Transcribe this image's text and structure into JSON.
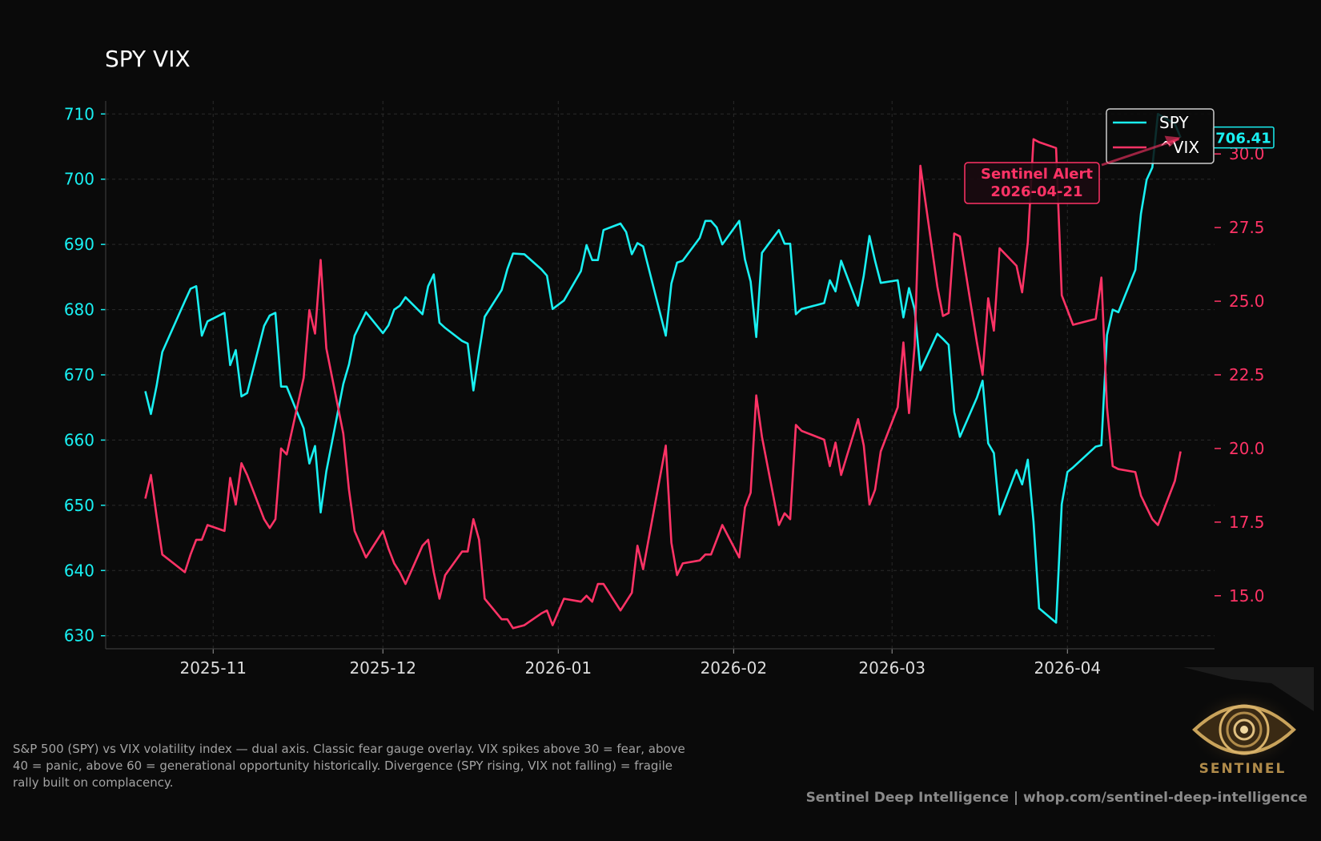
{
  "title": "SPY VIX",
  "caption": "S&P 500 (SPY) vs VIX volatility index — dual axis. Classic fear gauge overlay. VIX spikes above 30 = fear, above 40 = panic, above 60 = generational opportunity historically. Divergence (SPY rising, VIX not falling) = fragile rally built on complacency.",
  "footer": "Sentinel Deep Intelligence  |  whop.com/sentinel-deep-intelligence",
  "brand": {
    "logo_word": "SENTINEL",
    "logo_icon": "eye-icon"
  },
  "colors": {
    "background": "#0a0a0a",
    "spy": "#19f0f2",
    "vix": "#ff3366",
    "alert": "#ff3366"
  },
  "chart_data": {
    "type": "line",
    "title": "SPY VIX",
    "x_ticks": [
      "2025-11",
      "2025-12",
      "2026-01",
      "2026-02",
      "2026-03",
      "2026-04"
    ],
    "left_axis": {
      "series": "SPY",
      "ylim": [
        628,
        712
      ],
      "ticks": [
        "630",
        "640",
        "650",
        "660",
        "670",
        "680",
        "690",
        "700",
        "710"
      ]
    },
    "right_axis": {
      "series": "^VIX",
      "ylim": [
        13.2,
        31.8
      ],
      "ticks": [
        "15.0",
        "17.5",
        "20.0",
        "22.5",
        "25.0",
        "27.5",
        "30.0"
      ]
    },
    "grid": true,
    "legend": {
      "position": "top-right",
      "entries": [
        "SPY",
        "^VIX"
      ]
    },
    "last_value_label": "706.41",
    "annotation": {
      "line1": "Sentinel Alert",
      "line2": "2026-04-21",
      "date": "2026-04-21"
    },
    "series": [
      {
        "name": "SPY",
        "axis": "left",
        "points": [
          [
            "2025-10-20",
            667.5
          ],
          [
            "2025-10-21",
            664.0
          ],
          [
            "2025-10-22",
            668.3
          ],
          [
            "2025-10-23",
            673.5
          ],
          [
            "2025-10-27",
            681.3
          ],
          [
            "2025-10-28",
            683.2
          ],
          [
            "2025-10-29",
            683.6
          ],
          [
            "2025-10-30",
            676.0
          ],
          [
            "2025-10-31",
            678.2
          ],
          [
            "2025-11-03",
            679.5
          ],
          [
            "2025-11-04",
            671.5
          ],
          [
            "2025-11-05",
            673.8
          ],
          [
            "2025-11-06",
            666.7
          ],
          [
            "2025-11-07",
            667.2
          ],
          [
            "2025-11-10",
            677.5
          ],
          [
            "2025-11-11",
            679.1
          ],
          [
            "2025-11-12",
            679.5
          ],
          [
            "2025-11-13",
            668.2
          ],
          [
            "2025-11-14",
            668.2
          ],
          [
            "2025-11-17",
            661.8
          ],
          [
            "2025-11-18",
            656.4
          ],
          [
            "2025-11-19",
            659.1
          ],
          [
            "2025-11-20",
            648.9
          ],
          [
            "2025-11-21",
            655.2
          ],
          [
            "2025-11-24",
            668.6
          ],
          [
            "2025-11-25",
            671.6
          ],
          [
            "2025-11-26",
            676.0
          ],
          [
            "2025-11-28",
            679.6
          ],
          [
            "2025-12-01",
            676.4
          ],
          [
            "2025-12-02",
            677.6
          ],
          [
            "2025-12-03",
            680.0
          ],
          [
            "2025-12-04",
            680.6
          ],
          [
            "2025-12-05",
            681.9
          ],
          [
            "2025-12-08",
            679.3
          ],
          [
            "2025-12-09",
            683.6
          ],
          [
            "2025-12-10",
            685.4
          ],
          [
            "2025-12-11",
            678.0
          ],
          [
            "2025-12-12",
            677.2
          ],
          [
            "2025-12-15",
            675.2
          ],
          [
            "2025-12-16",
            674.8
          ],
          [
            "2025-12-17",
            667.6
          ],
          [
            "2025-12-18",
            673.5
          ],
          [
            "2025-12-19",
            678.9
          ],
          [
            "2025-12-22",
            683.0
          ],
          [
            "2025-12-23",
            686.2
          ],
          [
            "2025-12-24",
            688.6
          ],
          [
            "2025-12-26",
            688.5
          ],
          [
            "2025-12-29",
            686.2
          ],
          [
            "2025-12-30",
            685.2
          ],
          [
            "2025-12-31",
            680.1
          ],
          [
            "2026-01-02",
            681.4
          ],
          [
            "2026-01-05",
            685.9
          ],
          [
            "2026-01-06",
            689.9
          ],
          [
            "2026-01-07",
            687.6
          ],
          [
            "2026-01-08",
            687.6
          ],
          [
            "2026-01-09",
            692.2
          ],
          [
            "2026-01-12",
            693.2
          ],
          [
            "2026-01-13",
            691.9
          ],
          [
            "2026-01-14",
            688.5
          ],
          [
            "2026-01-15",
            690.2
          ],
          [
            "2026-01-16",
            689.7
          ],
          [
            "2026-01-20",
            676.0
          ],
          [
            "2026-01-21",
            684.0
          ],
          [
            "2026-01-22",
            687.2
          ],
          [
            "2026-01-23",
            687.5
          ],
          [
            "2026-01-26",
            691.0
          ],
          [
            "2026-01-27",
            693.6
          ],
          [
            "2026-01-28",
            693.6
          ],
          [
            "2026-01-29",
            692.6
          ],
          [
            "2026-01-30",
            690.0
          ],
          [
            "2026-02-02",
            693.6
          ],
          [
            "2026-02-03",
            687.7
          ],
          [
            "2026-02-04",
            684.3
          ],
          [
            "2026-02-05",
            675.8
          ],
          [
            "2026-02-06",
            688.7
          ],
          [
            "2026-02-09",
            692.2
          ],
          [
            "2026-02-10",
            690.1
          ],
          [
            "2026-02-11",
            690.1
          ],
          [
            "2026-02-12",
            679.3
          ],
          [
            "2026-02-13",
            680.1
          ],
          [
            "2026-02-17",
            681.0
          ],
          [
            "2026-02-18",
            684.5
          ],
          [
            "2026-02-19",
            682.8
          ],
          [
            "2026-02-20",
            687.5
          ],
          [
            "2026-02-23",
            680.6
          ],
          [
            "2026-02-24",
            685.2
          ],
          [
            "2026-02-25",
            691.3
          ],
          [
            "2026-02-26",
            687.5
          ],
          [
            "2026-02-27",
            684.1
          ],
          [
            "2026-03-02",
            684.5
          ],
          [
            "2026-03-03",
            678.8
          ],
          [
            "2026-03-04",
            683.3
          ],
          [
            "2026-03-05",
            680.0
          ],
          [
            "2026-03-06",
            670.7
          ],
          [
            "2026-03-09",
            676.3
          ],
          [
            "2026-03-10",
            675.5
          ],
          [
            "2026-03-11",
            674.6
          ],
          [
            "2026-03-12",
            664.3
          ],
          [
            "2026-03-13",
            660.5
          ],
          [
            "2026-03-16",
            666.5
          ],
          [
            "2026-03-17",
            669.1
          ],
          [
            "2026-03-18",
            659.5
          ],
          [
            "2026-03-19",
            658.0
          ],
          [
            "2026-03-20",
            648.6
          ],
          [
            "2026-03-23",
            655.4
          ],
          [
            "2026-03-24",
            653.2
          ],
          [
            "2026-03-25",
            657.0
          ],
          [
            "2026-03-26",
            647.5
          ],
          [
            "2026-03-27",
            634.2
          ],
          [
            "2026-03-30",
            632.0
          ],
          [
            "2026-03-31",
            650.2
          ],
          [
            "2026-04-01",
            655.1
          ],
          [
            "2026-04-02",
            655.8
          ],
          [
            "2026-04-06",
            659.0
          ],
          [
            "2026-04-07",
            659.2
          ],
          [
            "2026-04-08",
            676.1
          ],
          [
            "2026-04-09",
            680.0
          ],
          [
            "2026-04-10",
            679.6
          ],
          [
            "2026-04-13",
            686.1
          ],
          [
            "2026-04-14",
            694.7
          ],
          [
            "2026-04-15",
            699.9
          ],
          [
            "2026-04-16",
            701.8
          ],
          [
            "2026-04-17",
            710.0
          ],
          [
            "2026-04-20",
            708.5
          ],
          [
            "2026-04-21",
            706.4
          ]
        ]
      },
      {
        "name": "^VIX",
        "axis": "right",
        "points": [
          [
            "2025-10-20",
            18.3
          ],
          [
            "2025-10-21",
            19.1
          ],
          [
            "2025-10-22",
            17.7
          ],
          [
            "2025-10-23",
            16.4
          ],
          [
            "2025-10-27",
            15.8
          ],
          [
            "2025-10-28",
            16.4
          ],
          [
            "2025-10-29",
            16.9
          ],
          [
            "2025-10-30",
            16.9
          ],
          [
            "2025-10-31",
            17.4
          ],
          [
            "2025-11-03",
            17.2
          ],
          [
            "2025-11-04",
            19.0
          ],
          [
            "2025-11-05",
            18.1
          ],
          [
            "2025-11-06",
            19.5
          ],
          [
            "2025-11-07",
            19.1
          ],
          [
            "2025-11-10",
            17.6
          ],
          [
            "2025-11-11",
            17.3
          ],
          [
            "2025-11-12",
            17.6
          ],
          [
            "2025-11-13",
            20.0
          ],
          [
            "2025-11-14",
            19.8
          ],
          [
            "2025-11-17",
            22.4
          ],
          [
            "2025-11-18",
            24.7
          ],
          [
            "2025-11-19",
            23.9
          ],
          [
            "2025-11-20",
            26.4
          ],
          [
            "2025-11-21",
            23.4
          ],
          [
            "2025-11-24",
            20.5
          ],
          [
            "2025-11-25",
            18.6
          ],
          [
            "2025-11-26",
            17.2
          ],
          [
            "2025-11-28",
            16.3
          ],
          [
            "2025-12-01",
            17.2
          ],
          [
            "2025-12-02",
            16.6
          ],
          [
            "2025-12-03",
            16.1
          ],
          [
            "2025-12-04",
            15.8
          ],
          [
            "2025-12-05",
            15.4
          ],
          [
            "2025-12-08",
            16.7
          ],
          [
            "2025-12-09",
            16.9
          ],
          [
            "2025-12-10",
            15.8
          ],
          [
            "2025-12-11",
            14.9
          ],
          [
            "2025-12-12",
            15.7
          ],
          [
            "2025-12-15",
            16.5
          ],
          [
            "2025-12-16",
            16.5
          ],
          [
            "2025-12-17",
            17.6
          ],
          [
            "2025-12-18",
            16.9
          ],
          [
            "2025-12-19",
            14.9
          ],
          [
            "2025-12-22",
            14.2
          ],
          [
            "2025-12-23",
            14.2
          ],
          [
            "2025-12-24",
            13.9
          ],
          [
            "2025-12-26",
            14.0
          ],
          [
            "2025-12-29",
            14.4
          ],
          [
            "2025-12-30",
            14.5
          ],
          [
            "2025-12-31",
            14.0
          ],
          [
            "2026-01-02",
            14.9
          ],
          [
            "2026-01-05",
            14.8
          ],
          [
            "2026-01-06",
            15.0
          ],
          [
            "2026-01-07",
            14.8
          ],
          [
            "2026-01-08",
            15.4
          ],
          [
            "2026-01-09",
            15.4
          ],
          [
            "2026-01-12",
            14.5
          ],
          [
            "2026-01-13",
            14.8
          ],
          [
            "2026-01-14",
            15.1
          ],
          [
            "2026-01-15",
            16.7
          ],
          [
            "2026-01-16",
            15.9
          ],
          [
            "2026-01-20",
            20.1
          ],
          [
            "2026-01-21",
            16.8
          ],
          [
            "2026-01-22",
            15.7
          ],
          [
            "2026-01-23",
            16.1
          ],
          [
            "2026-01-26",
            16.2
          ],
          [
            "2026-01-27",
            16.4
          ],
          [
            "2026-01-28",
            16.4
          ],
          [
            "2026-01-29",
            16.9
          ],
          [
            "2026-01-30",
            17.4
          ],
          [
            "2026-02-02",
            16.3
          ],
          [
            "2026-02-03",
            18.0
          ],
          [
            "2026-02-04",
            18.5
          ],
          [
            "2026-02-05",
            21.8
          ],
          [
            "2026-02-06",
            20.4
          ],
          [
            "2026-02-09",
            17.4
          ],
          [
            "2026-02-10",
            17.8
          ],
          [
            "2026-02-11",
            17.6
          ],
          [
            "2026-02-12",
            20.8
          ],
          [
            "2026-02-13",
            20.6
          ],
          [
            "2026-02-17",
            20.3
          ],
          [
            "2026-02-18",
            19.4
          ],
          [
            "2026-02-19",
            20.2
          ],
          [
            "2026-02-20",
            19.1
          ],
          [
            "2026-02-23",
            21.0
          ],
          [
            "2026-02-24",
            20.1
          ],
          [
            "2026-02-25",
            18.1
          ],
          [
            "2026-02-26",
            18.6
          ],
          [
            "2026-02-27",
            19.9
          ],
          [
            "2026-03-02",
            21.4
          ],
          [
            "2026-03-03",
            23.6
          ],
          [
            "2026-03-04",
            21.2
          ],
          [
            "2026-03-05",
            23.5
          ],
          [
            "2026-03-06",
            29.6
          ],
          [
            "2026-03-09",
            25.5
          ],
          [
            "2026-03-10",
            24.5
          ],
          [
            "2026-03-11",
            24.6
          ],
          [
            "2026-03-12",
            27.3
          ],
          [
            "2026-03-13",
            27.2
          ],
          [
            "2026-03-16",
            23.6
          ],
          [
            "2026-03-17",
            22.5
          ],
          [
            "2026-03-18",
            25.1
          ],
          [
            "2026-03-19",
            24.0
          ],
          [
            "2026-03-20",
            26.8
          ],
          [
            "2026-03-23",
            26.2
          ],
          [
            "2026-03-24",
            25.3
          ],
          [
            "2026-03-25",
            27.0
          ],
          [
            "2026-03-26",
            30.5
          ],
          [
            "2026-03-27",
            30.4
          ],
          [
            "2026-03-30",
            30.2
          ],
          [
            "2026-03-31",
            25.2
          ],
          [
            "2026-04-01",
            24.7
          ],
          [
            "2026-04-02",
            24.2
          ],
          [
            "2026-04-06",
            24.4
          ],
          [
            "2026-04-07",
            25.8
          ],
          [
            "2026-04-08",
            21.4
          ],
          [
            "2026-04-09",
            19.4
          ],
          [
            "2026-04-10",
            19.3
          ],
          [
            "2026-04-13",
            19.2
          ],
          [
            "2026-04-14",
            18.4
          ],
          [
            "2026-04-15",
            18.0
          ],
          [
            "2026-04-16",
            17.6
          ],
          [
            "2026-04-17",
            17.4
          ],
          [
            "2026-04-20",
            18.9
          ],
          [
            "2026-04-21",
            19.9
          ]
        ]
      }
    ]
  }
}
